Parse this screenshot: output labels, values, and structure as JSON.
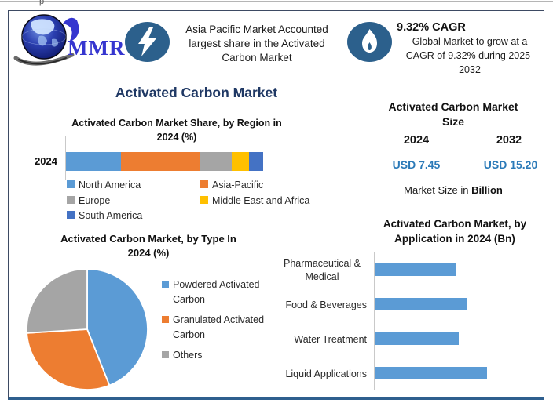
{
  "artifact": {
    "top_text": "p"
  },
  "header": {
    "logo_text": "MMR",
    "highlight": {
      "lines": [
        "Asia Pacific Market Accounted",
        "largest share in the Activated",
        "Carbon Market"
      ]
    },
    "cagr": {
      "title": "9.32% CAGR",
      "lines": [
        "Global Market to grow at a",
        "CAGR of 9.32% during 2025-",
        "2032"
      ]
    }
  },
  "main_title": "Activated Carbon Market",
  "market_size": {
    "title_lines": [
      "Activated Carbon Market",
      "Size"
    ],
    "years": [
      {
        "year": "2024",
        "value": "USD 7.45"
      },
      {
        "year": "2032",
        "value": "USD 15.20"
      }
    ],
    "note_prefix": "Market Size in ",
    "note_bold": "Billion"
  },
  "colors": {
    "accent_navy": "#1f3864",
    "value_blue": "#2b7ab8",
    "icon_circle": "#2c608c",
    "border_blue": "#2e5f8e",
    "chart_blue": "#5B9BD5",
    "chart_orange": "#ED7D31",
    "chart_gray": "#A5A5A5",
    "chart_yellow": "#FFC000",
    "chart_navy": "#4472C4"
  },
  "chart_data": [
    {
      "id": "region_share",
      "type": "bar",
      "subtype": "stacked-horizontal",
      "title": "Activated Carbon Market Share, by Region in 2024 (%)",
      "title_lines": [
        "Activated Carbon Market Share, by Region in",
        "2024 (%)"
      ],
      "row_label": "2024",
      "categories": [
        "North America",
        "Asia-Pacific",
        "Europe",
        "Middle East and Africa",
        "South America"
      ],
      "values": [
        28,
        40,
        16,
        9,
        7
      ],
      "unit": "%",
      "xlim": [
        0,
        100
      ],
      "legend_position": "bottom",
      "colors": [
        "#5B9BD5",
        "#ED7D31",
        "#A5A5A5",
        "#FFC000",
        "#4472C4"
      ]
    },
    {
      "id": "type_share",
      "type": "pie",
      "title": "Activated Carbon Market, by Type In 2024 (%)",
      "title_lines": [
        "Activated Carbon Market, by Type In",
        "2024 (%)"
      ],
      "categories": [
        "Powdered Activated Carbon",
        "Granulated Activated Carbon",
        "Others"
      ],
      "legend_lines": [
        [
          "Powdered Activated",
          "Carbon"
        ],
        [
          "Granulated Activated",
          "Carbon"
        ],
        [
          "Others",
          ""
        ]
      ],
      "values": [
        44,
        30,
        26
      ],
      "unit": "%",
      "start_angle_deg": 0,
      "legend_position": "right",
      "colors": [
        "#5B9BD5",
        "#ED7D31",
        "#A5A5A5"
      ]
    },
    {
      "id": "application_2024",
      "type": "bar",
      "subtype": "horizontal",
      "title": "Activated Carbon Market, by Application in 2024 (Bn)",
      "title_lines": [
        "Activated Carbon Market, by",
        "Application in 2024 (Bn)"
      ],
      "categories": [
        "Pharmaceutical & Medical",
        "Food & Beverages",
        "Water Treatment",
        "Liquid Applications"
      ],
      "category_lines": [
        [
          "Pharmaceutical &",
          "Medical"
        ],
        [
          "Food & Beverages"
        ],
        [
          "Water Treatment"
        ],
        [
          "Liquid Applications"
        ]
      ],
      "values": [
        1.64,
        1.85,
        1.69,
        2.27
      ],
      "unit": "Bn",
      "xlim": [
        0,
        2.5
      ],
      "grid": false,
      "color": "#5B9BD5"
    }
  ]
}
